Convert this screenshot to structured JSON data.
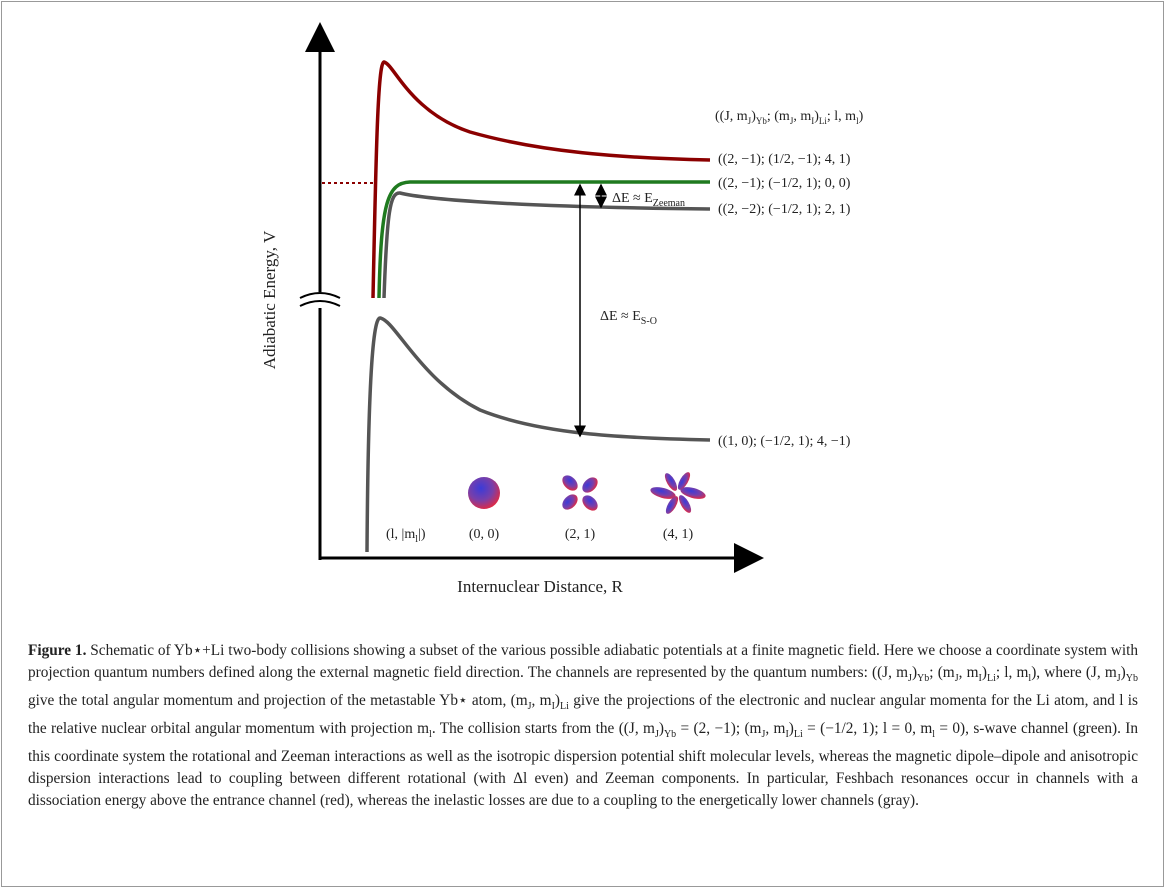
{
  "figure": {
    "y_axis_label": "Adiabatic Energy, V",
    "x_axis_label": "Internuclear Distance, R",
    "header_label": [
      "((J, m",
      "J",
      ")",
      "Yb",
      "; (m",
      "J",
      ", m",
      "I",
      ")",
      "Li",
      "; l, m",
      "l",
      ")"
    ],
    "curve_labels": [
      "((2, −1); (1/2, −1); 4, 1)",
      "((2, −1); (−1/2, 1); 0, 0)",
      "((2, −2); (−1/2, 1); 2, 1)",
      "((1, 0); (−1/2, 1); 4, −1)"
    ],
    "delta_zeeman": [
      "ΔE ≈ E",
      "Zeeman"
    ],
    "delta_so": [
      "ΔE ≈ E",
      "S-O"
    ],
    "orbital_header": [
      "(l, |m",
      "l",
      "|)"
    ],
    "orbital_labels": [
      "(0, 0)",
      "(2, 1)",
      "(4, 1)"
    ]
  },
  "caption": {
    "label": "Figure 1.",
    "text": [
      " Schematic of Yb⋆+Li two-body collisions showing a subset of the various possible adiabatic potentials at a finite magnetic field. Here we choose a coordinate system with projection quantum numbers defined along the external magnetic field direction. The channels are represented by the quantum numbers: ((J, m",
      "J",
      ")",
      "Yb",
      "; (m",
      "J",
      ", m",
      "I",
      ")",
      "Li",
      "; l, m",
      "l",
      "), where (J, m",
      "J",
      ")",
      "Yb",
      " give the total angular momentum and projection of the metastable Yb⋆ atom, (m",
      "J",
      ", m",
      "I",
      ")",
      "Li",
      " give the projections of the electronic and nuclear angular momenta for the Li atom, and l is the relative nuclear orbital angular momentum with projection m",
      "l",
      ". The collision starts from the ((J, m",
      "J",
      ")",
      "Yb",
      " = (2, −1); (m",
      "J",
      ", m",
      "I",
      ")",
      "Li",
      " = (−1/2, 1); l = 0, m",
      "l",
      " = 0), s-wave channel (green). In this coordinate system the rotational and Zeeman interactions as well as the isotropic dispersion potential shift molecular levels, whereas the magnetic dipole–dipole and anisotropic dispersion interactions lead to coupling between different rotational (with Δl even) and Zeeman components. In particular, Feshbach resonances occur in channels with a dissociation energy above the entrance channel (red), whereas the inelastic losses are due to a coupling to the energetically lower channels (gray)."
    ]
  }
}
